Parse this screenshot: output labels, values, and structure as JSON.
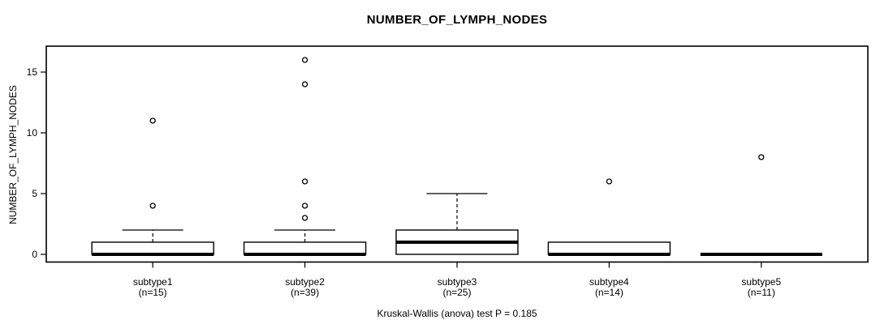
{
  "chart_data": {
    "type": "box",
    "title": "NUMBER_OF_LYMPH_NODES",
    "ylabel": "NUMBER_OF_LYMPH_NODES",
    "footer": "Kruskal-Wallis (anova) test P = 0.185",
    "yticks": [
      0,
      5,
      10,
      15
    ],
    "ylim": [
      -0.65,
      16.7
    ],
    "grid": false,
    "colors": {
      "stroke": "#000000",
      "background": "#ffffff"
    },
    "groups": [
      {
        "label": "subtype1",
        "n_label": "(n=15)",
        "n": 15,
        "q1": 0,
        "median": 0,
        "q3": 1,
        "whisker_low": 0,
        "whisker_high": 2,
        "outliers": [
          4,
          11
        ]
      },
      {
        "label": "subtype2",
        "n_label": "(n=39)",
        "n": 39,
        "q1": 0,
        "median": 0,
        "q3": 1,
        "whisker_low": 0,
        "whisker_high": 2,
        "outliers": [
          3,
          4,
          6,
          14,
          16
        ]
      },
      {
        "label": "subtype3",
        "n_label": "(n=25)",
        "n": 25,
        "q1": 0,
        "median": 1,
        "q3": 2,
        "whisker_low": 0,
        "whisker_high": 5,
        "outliers": []
      },
      {
        "label": "subtype4",
        "n_label": "(n=14)",
        "n": 14,
        "q1": 0,
        "median": 0,
        "q3": 1,
        "whisker_low": 0,
        "whisker_high": 1,
        "outliers": [
          6
        ]
      },
      {
        "label": "subtype5",
        "n_label": "(n=11)",
        "n": 11,
        "q1": 0,
        "median": 0,
        "q3": 0,
        "whisker_low": 0,
        "whisker_high": 0,
        "outliers": [
          8
        ]
      }
    ]
  }
}
